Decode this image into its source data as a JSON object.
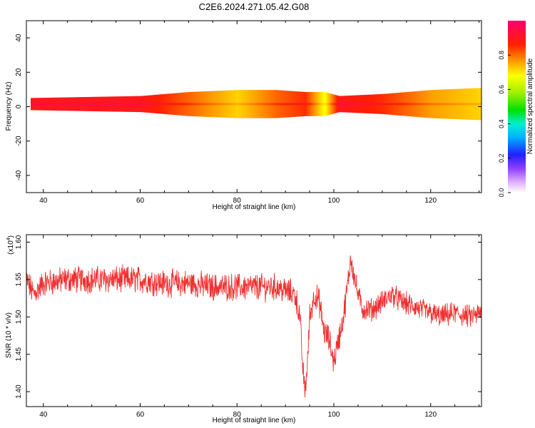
{
  "figure": {
    "title": "C2E6.2024.271.05.42.G08"
  },
  "chart_data": [
    {
      "type": "heatmap",
      "xlabel": "Height of straight line (km)",
      "ylabel": "Frequency (Hz)",
      "xlim": [
        36.5,
        130.5
      ],
      "ylim": [
        -50,
        50
      ],
      "x_ticks": [
        40,
        60,
        80,
        100,
        120
      ],
      "y_ticks": [
        -40,
        -20,
        0,
        20,
        40
      ],
      "colorbar": {
        "label": "Normalized spectral amplitude",
        "range": [
          0,
          1
        ],
        "ticks": [
          0.0,
          0.2,
          0.4,
          0.6,
          0.8
        ]
      },
      "band": {
        "center_hz": 1.5,
        "description_points": [
          {
            "x": 37,
            "peak_amplitude": 0.95,
            "halfwidth_hz": 1.5
          },
          {
            "x": 60,
            "peak_amplitude": 0.95,
            "halfwidth_hz": 2
          },
          {
            "x": 70,
            "peak_amplitude": 0.85,
            "halfwidth_hz": 3
          },
          {
            "x": 80,
            "peak_amplitude": 0.75,
            "halfwidth_hz": 3.5
          },
          {
            "x": 88,
            "peak_amplitude": 0.85,
            "halfwidth_hz": 3.5
          },
          {
            "x": 94,
            "peak_amplitude": 0.9,
            "halfwidth_hz": 3
          },
          {
            "x": 98,
            "peak_amplitude": 0.7,
            "halfwidth_hz": 3
          },
          {
            "x": 101,
            "peak_amplitude": 0.95,
            "halfwidth_hz": 2
          },
          {
            "x": 110,
            "peak_amplitude": 0.9,
            "halfwidth_hz": 2.5
          },
          {
            "x": 120,
            "peak_amplitude": 0.8,
            "halfwidth_hz": 3.5
          },
          {
            "x": 130,
            "peak_amplitude": 0.75,
            "halfwidth_hz": 4
          }
        ]
      }
    },
    {
      "type": "line",
      "xlabel": "Height of straight line (km)",
      "ylabel": "SNR (10 * v/v)",
      "multiplier_label": "(x10",
      "multiplier_exponent": "4",
      "multiplier_close": ")",
      "xlim": [
        36.5,
        130.5
      ],
      "ylim": [
        1.38,
        1.61
      ],
      "x_ticks": [
        40,
        60,
        80,
        100,
        120
      ],
      "y_ticks": [
        1.4,
        1.45,
        1.5,
        1.55,
        1.6
      ],
      "color": "#f03030",
      "series": [
        {
          "trend_x": [
            36.5,
            38,
            40,
            45,
            50,
            55,
            60,
            65,
            70,
            75,
            80,
            85,
            88,
            90,
            92,
            93,
            93.5,
            94,
            94.5,
            95,
            96,
            97,
            98,
            99,
            100,
            101,
            102,
            103,
            103.5,
            104,
            105,
            106,
            108,
            110,
            112,
            114,
            116,
            118,
            120,
            122,
            125,
            128,
            130.5
          ],
          "trend_y": [
            1.55,
            1.53,
            1.545,
            1.55,
            1.55,
            1.55,
            1.55,
            1.545,
            1.545,
            1.54,
            1.54,
            1.54,
            1.54,
            1.535,
            1.53,
            1.5,
            1.44,
            1.4,
            1.43,
            1.5,
            1.53,
            1.52,
            1.48,
            1.47,
            1.44,
            1.47,
            1.5,
            1.55,
            1.58,
            1.56,
            1.53,
            1.51,
            1.51,
            1.52,
            1.53,
            1.52,
            1.515,
            1.51,
            1.505,
            1.5,
            1.505,
            1.5,
            1.505
          ],
          "noise_amplitude": 0.015
        }
      ]
    }
  ]
}
